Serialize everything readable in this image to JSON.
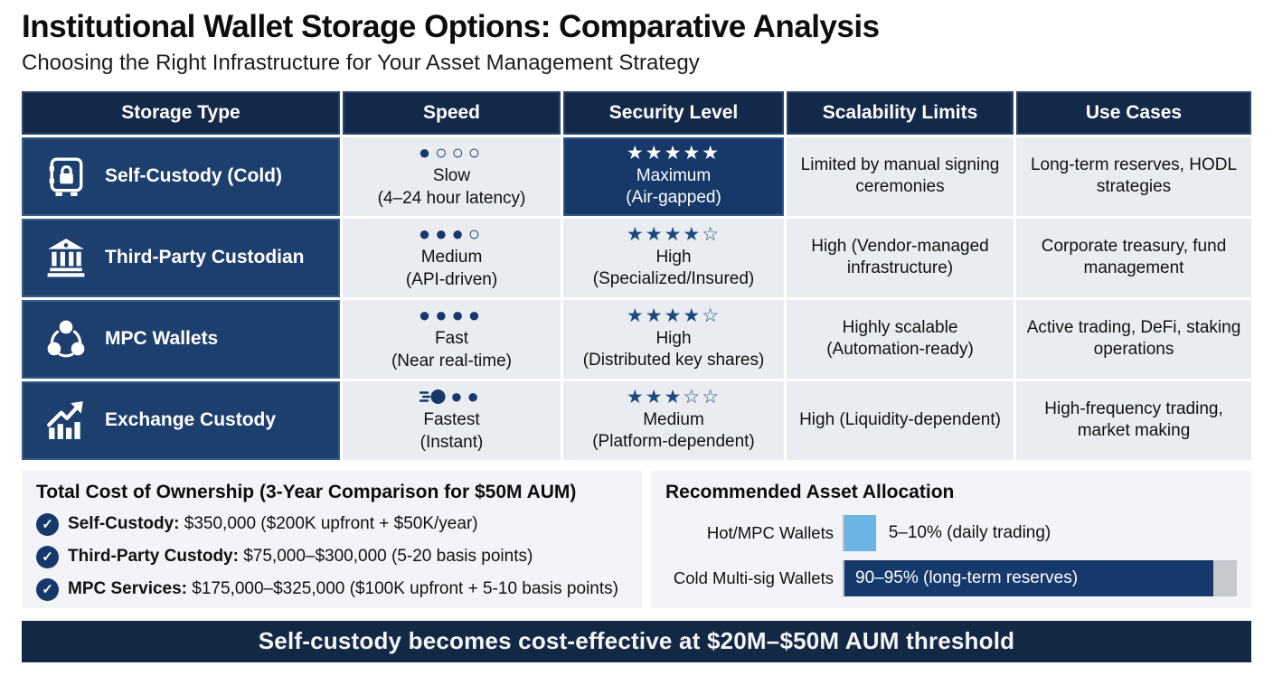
{
  "page": {
    "title": "Institutional Wallet Storage Options: Comparative Analysis",
    "subtitle": "Choosing the Right Infrastructure for Your Asset Management Strategy"
  },
  "colors": {
    "header_navy": "#14294a",
    "row_label_navy": "#1d3f6e",
    "highlight_navy": "#17396a",
    "light_cell": "#e9edf1",
    "panel_bg": "#f2f4f7",
    "accent_star": "#1c4a80",
    "hot_bar_blue": "#6cb4e4",
    "cold_bar_navy": "#16396b",
    "banner_navy": "#132845"
  },
  "table": {
    "headers": [
      "Storage Type",
      "Speed",
      "Security Level",
      "Scalability Limits",
      "Use Cases"
    ],
    "rows": [
      {
        "storage": {
          "label": "Self-Custody (Cold)",
          "icon": "safe-icon"
        },
        "speed": {
          "dots": "●○○○",
          "level": "Slow",
          "detail": "(4–24 hour latency)"
        },
        "security": {
          "stars": "★★★★★",
          "level": "Maximum",
          "detail": "(Air-gapped)",
          "highlight": true
        },
        "scalability": {
          "text": "Limited by manual signing ceremonies"
        },
        "use_cases": {
          "text": "Long-term reserves, HODL strategies"
        }
      },
      {
        "storage": {
          "label": "Third-Party Custodian",
          "icon": "bank-icon"
        },
        "speed": {
          "dots": "●●●○",
          "level": "Medium",
          "detail": "(API-driven)"
        },
        "security": {
          "stars": "★★★★☆",
          "level": "High",
          "detail": "(Specialized/Insured)",
          "highlight": false
        },
        "scalability": {
          "text": "High (Vendor-managed infrastructure)"
        },
        "use_cases": {
          "text": "Corporate treasury, fund management"
        }
      },
      {
        "storage": {
          "label": "MPC Wallets",
          "icon": "mpc-share-icon"
        },
        "speed": {
          "dots": "●●●●",
          "level": "Fast",
          "detail": "(Near real-time)"
        },
        "security": {
          "stars": "★★★★☆",
          "level": "High",
          "detail": "(Distributed key shares)",
          "highlight": false
        },
        "scalability": {
          "text": "Highly scalable (Automation-ready)"
        },
        "use_cases": {
          "text": "Active trading, DeFi, staking operations"
        }
      },
      {
        "storage": {
          "label": "Exchange Custody",
          "icon": "growth-chart-icon"
        },
        "speed": {
          "dots": "●●",
          "comet": true,
          "level": "Fastest",
          "detail": "(Instant)"
        },
        "security": {
          "stars": "★★★☆☆",
          "level": "Medium",
          "detail": "(Platform-dependent)",
          "highlight": false
        },
        "scalability": {
          "text": "High (Liquidity-dependent)"
        },
        "use_cases": {
          "text": "High-frequency trading, market making"
        }
      }
    ]
  },
  "cost_panel": {
    "title": "Total Cost of Ownership (3-Year Comparison for $50M AUM)",
    "items": [
      {
        "label": "Self-Custody:",
        "value": "$350,000 ($200K upfront + $50K/year)"
      },
      {
        "label": "Third-Party Custody:",
        "value": "$75,000–$300,000 (5-20 basis points)"
      },
      {
        "label": "MPC Services:",
        "value": "$175,000–$325,000 ($100K upfront + 5-10 basis points)"
      }
    ]
  },
  "allocation_panel": {
    "title": "Recommended Asset Allocation",
    "bars": [
      {
        "label": "Hot/MPC Wallets",
        "value_label": "5–10% (daily trading)",
        "percent": 8,
        "color": "#6cb4e4"
      },
      {
        "label": "Cold Multi-sig Wallets",
        "value_label": "90–95% (long-term reserves)",
        "percent": 94,
        "color": "#16396b"
      }
    ]
  },
  "banner": {
    "text": "Self-custody becomes cost-effective at $20M–$50M AUM threshold"
  },
  "chart_data": [
    {
      "type": "table",
      "title": "Institutional Wallet Storage Options: Comparative Analysis",
      "columns": [
        "Storage Type",
        "Speed",
        "Security Level",
        "Scalability Limits",
        "Use Cases"
      ],
      "rows": [
        [
          "Self-Custody (Cold)",
          "Slow (4–24 hour latency), speed 1/4",
          "Maximum (Air-gapped), 5/5 stars",
          "Limited by manual signing ceremonies",
          "Long-term reserves, HODL strategies"
        ],
        [
          "Third-Party Custodian",
          "Medium (API-driven), speed 3/4",
          "High (Specialized/Insured), 4/5 stars",
          "High (Vendor-managed infrastructure)",
          "Corporate treasury, fund management"
        ],
        [
          "MPC Wallets",
          "Fast (Near real-time), speed 4/4",
          "High (Distributed key shares), 4/5 stars",
          "Highly scalable (Automation-ready)",
          "Active trading, DeFi, staking operations"
        ],
        [
          "Exchange Custody",
          "Fastest (Instant), speed 4+/4",
          "Medium (Platform-dependent), 3/5 stars",
          "High (Liquidity-dependent)",
          "High-frequency trading, market making"
        ]
      ]
    },
    {
      "type": "bar",
      "title": "Recommended Asset Allocation",
      "orientation": "horizontal",
      "categories": [
        "Hot/MPC Wallets",
        "Cold Multi-sig Wallets"
      ],
      "values": [
        8,
        94
      ],
      "value_labels": [
        "5–10% (daily trading)",
        "90–95% (long-term reserves)"
      ],
      "xlim": [
        0,
        100
      ],
      "legend": "none",
      "grid": false
    }
  ]
}
